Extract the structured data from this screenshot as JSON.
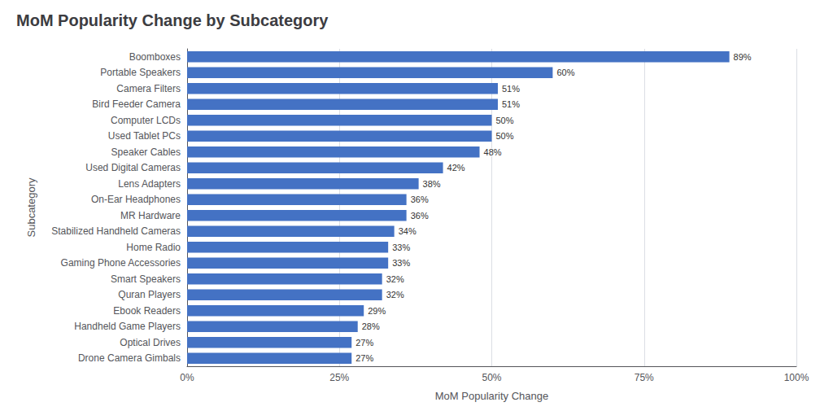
{
  "chart_data": {
    "type": "bar",
    "orientation": "horizontal",
    "title": "MoM Popularity Change by Subcategory",
    "xlabel": "MoM Popularity Change",
    "ylabel": "Subcategory",
    "categories": [
      "Drone Camera Gimbals",
      "Optical Drives",
      "Handheld Game Players",
      "Ebook Readers",
      "Quran Players",
      "Smart Speakers",
      "Gaming Phone Accessories",
      "Home Radio",
      "Stabilized Handheld Cameras",
      "MR Hardware",
      "On-Ear Headphones",
      "Lens Adapters",
      "Used Digital Cameras",
      "Speaker Cables",
      "Used Tablet PCs",
      "Computer LCDs",
      "Bird Feeder Camera",
      "Camera Filters",
      "Portable Speakers",
      "Boomboxes"
    ],
    "values": [
      27,
      27,
      28,
      29,
      32,
      32,
      33,
      33,
      34,
      36,
      36,
      38,
      42,
      48,
      50,
      50,
      51,
      51,
      60,
      89
    ],
    "value_labels": [
      "27%",
      "27%",
      "28%",
      "29%",
      "32%",
      "32%",
      "33%",
      "33%",
      "34%",
      "36%",
      "36%",
      "38%",
      "42%",
      "48%",
      "50%",
      "50%",
      "51%",
      "51%",
      "60%",
      "89%"
    ],
    "color": "#4472C4",
    "xlim": [
      0,
      100
    ],
    "xticks": [
      {
        "value": 0,
        "label": "0%"
      },
      {
        "value": 25,
        "label": "25%"
      },
      {
        "value": 50,
        "label": "50%"
      },
      {
        "value": 75,
        "label": "75%"
      },
      {
        "value": 100,
        "label": "100%"
      }
    ],
    "grid": true,
    "data_labels": true
  }
}
